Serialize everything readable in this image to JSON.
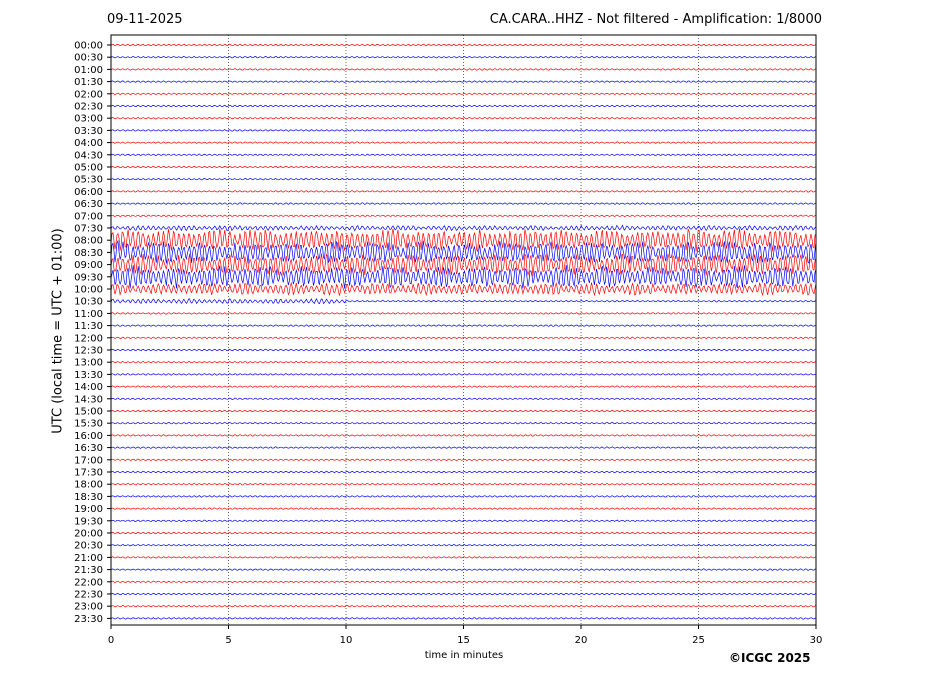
{
  "header": {
    "date": "09-11-2025",
    "title": "CA.CARA..HHZ - Not filtered - Amplification: 1/8000"
  },
  "footer": {
    "copyright": "©ICGC 2025"
  },
  "chart_data": {
    "type": "line",
    "xlabel": "time in minutes",
    "ylabel": "UTC (local time = UTC + 01:00)",
    "xlim": [
      0,
      30
    ],
    "xticks": [
      0,
      5,
      10,
      15,
      20,
      25,
      30
    ],
    "grid": "vertical dotted at x ticks",
    "colors": {
      "even_rows": "#ff0000",
      "odd_rows": "#0000ff"
    },
    "rows": [
      "00:00",
      "00:30",
      "01:00",
      "01:30",
      "02:00",
      "02:30",
      "03:00",
      "03:30",
      "04:00",
      "04:30",
      "05:00",
      "05:30",
      "06:00",
      "06:30",
      "07:00",
      "07:30",
      "08:00",
      "08:30",
      "09:00",
      "09:30",
      "10:00",
      "10:30",
      "11:00",
      "11:30",
      "12:00",
      "12:30",
      "13:00",
      "13:30",
      "14:00",
      "14:30",
      "15:00",
      "15:30",
      "16:00",
      "16:30",
      "17:00",
      "17:30",
      "18:00",
      "18:30",
      "19:00",
      "19:30",
      "20:00",
      "20:30",
      "21:00",
      "21:30",
      "22:00",
      "22:30",
      "23:00",
      "23:30"
    ],
    "events": [
      {
        "row": "07:30",
        "from_min": 0,
        "to_min": 30,
        "level": "small"
      },
      {
        "row": "08:00",
        "from_min": 0,
        "to_min": 30,
        "level": "large"
      },
      {
        "row": "08:30",
        "from_min": 0,
        "to_min": 30,
        "level": "large"
      },
      {
        "row": "09:00",
        "from_min": 0,
        "to_min": 30,
        "level": "large"
      },
      {
        "row": "09:30",
        "from_min": 0,
        "to_min": 30,
        "level": "large"
      },
      {
        "row": "10:00",
        "from_min": 0,
        "to_min": 30,
        "level": "medium"
      },
      {
        "row": "10:30",
        "from_min": 0,
        "to_min": 10,
        "level": "small"
      }
    ]
  }
}
